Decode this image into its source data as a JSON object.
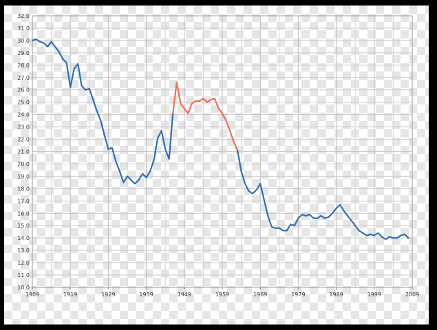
{
  "chart_data": {
    "type": "line",
    "title": "",
    "xlabel": "",
    "ylabel": "",
    "xlim": [
      1909,
      2009
    ],
    "ylim": [
      10.0,
      32.0
    ],
    "grid": true,
    "x_ticks": [
      "1909",
      "1919",
      "1929",
      "1939",
      "1949",
      "1959",
      "1969",
      "1979",
      "1989",
      "1999",
      "2009"
    ],
    "y_ticks": [
      "10.0",
      "11.0",
      "12.0",
      "13.0",
      "14.0",
      "15.0",
      "16.0",
      "17.0",
      "18.0",
      "19.0",
      "20.0",
      "21.0",
      "22.0",
      "23.0",
      "24.0",
      "25.0",
      "26.0",
      "27.0",
      "28.0",
      "29.0",
      "30.0",
      "31.0",
      "32.0"
    ],
    "series": [
      {
        "color": "#2f6fb1",
        "points": [
          [
            1909,
            30.0
          ],
          [
            1910,
            30.1
          ],
          [
            1911,
            29.9
          ],
          [
            1912,
            29.8
          ],
          [
            1913,
            29.5
          ],
          [
            1914,
            29.9
          ],
          [
            1915,
            29.5
          ],
          [
            1916,
            29.1
          ],
          [
            1917,
            28.5
          ],
          [
            1918,
            28.2
          ],
          [
            1919,
            26.2
          ],
          [
            1920,
            27.7
          ],
          [
            1921,
            28.1
          ],
          [
            1922,
            26.3
          ],
          [
            1923,
            26.0
          ],
          [
            1924,
            26.1
          ],
          [
            1925,
            25.2
          ],
          [
            1926,
            24.3
          ],
          [
            1927,
            23.5
          ],
          [
            1928,
            22.3
          ],
          [
            1929,
            21.2
          ],
          [
            1930,
            21.3
          ],
          [
            1931,
            20.2
          ],
          [
            1932,
            19.4
          ],
          [
            1933,
            18.5
          ],
          [
            1934,
            19.0
          ],
          [
            1935,
            18.7
          ],
          [
            1936,
            18.4
          ],
          [
            1937,
            18.7
          ],
          [
            1938,
            19.2
          ],
          [
            1939,
            18.9
          ],
          [
            1940,
            19.4
          ],
          [
            1941,
            20.3
          ],
          [
            1942,
            22.1
          ],
          [
            1943,
            22.7
          ],
          [
            1944,
            21.2
          ],
          [
            1945,
            20.4
          ],
          [
            1946,
            24.1
          ]
        ]
      },
      {
        "color": "#f07050",
        "points": [
          [
            1946,
            24.1
          ],
          [
            1947,
            26.6
          ],
          [
            1948,
            24.9
          ],
          [
            1949,
            24.5
          ],
          [
            1950,
            24.1
          ],
          [
            1951,
            24.9
          ],
          [
            1952,
            25.1
          ],
          [
            1953,
            25.1
          ],
          [
            1954,
            25.3
          ],
          [
            1955,
            25.0
          ],
          [
            1956,
            25.2
          ],
          [
            1957,
            25.3
          ],
          [
            1958,
            24.5
          ],
          [
            1959,
            24.1
          ],
          [
            1960,
            23.5
          ],
          [
            1961,
            22.7
          ],
          [
            1962,
            21.8
          ],
          [
            1963,
            21.1
          ]
        ]
      },
      {
        "color": "#2f6fb1",
        "points": [
          [
            1963,
            21.1
          ],
          [
            1964,
            19.4
          ],
          [
            1965,
            18.4
          ],
          [
            1966,
            17.8
          ],
          [
            1967,
            17.6
          ],
          [
            1968,
            17.9
          ],
          [
            1969,
            18.4
          ],
          [
            1970,
            17.1
          ],
          [
            1971,
            15.8
          ],
          [
            1972,
            14.9
          ],
          [
            1973,
            14.8
          ],
          [
            1974,
            14.8
          ],
          [
            1975,
            14.6
          ],
          [
            1976,
            14.6
          ],
          [
            1977,
            15.1
          ],
          [
            1978,
            15.0
          ],
          [
            1979,
            15.6
          ],
          [
            1980,
            15.9
          ],
          [
            1981,
            15.8
          ],
          [
            1982,
            15.9
          ],
          [
            1983,
            15.6
          ],
          [
            1984,
            15.6
          ],
          [
            1985,
            15.8
          ],
          [
            1986,
            15.6
          ],
          [
            1987,
            15.7
          ],
          [
            1988,
            16.0
          ],
          [
            1989,
            16.4
          ],
          [
            1990,
            16.7
          ],
          [
            1991,
            16.2
          ],
          [
            1992,
            15.8
          ],
          [
            1993,
            15.4
          ],
          [
            1994,
            15.0
          ],
          [
            1995,
            14.6
          ],
          [
            1996,
            14.4
          ],
          [
            1997,
            14.2
          ],
          [
            1998,
            14.3
          ],
          [
            1999,
            14.2
          ],
          [
            2000,
            14.4
          ],
          [
            2001,
            14.1
          ],
          [
            2002,
            13.9
          ],
          [
            2003,
            14.1
          ],
          [
            2004,
            14.0
          ],
          [
            2005,
            14.0
          ],
          [
            2006,
            14.2
          ],
          [
            2007,
            14.3
          ],
          [
            2008,
            14.0
          ]
        ]
      }
    ]
  }
}
